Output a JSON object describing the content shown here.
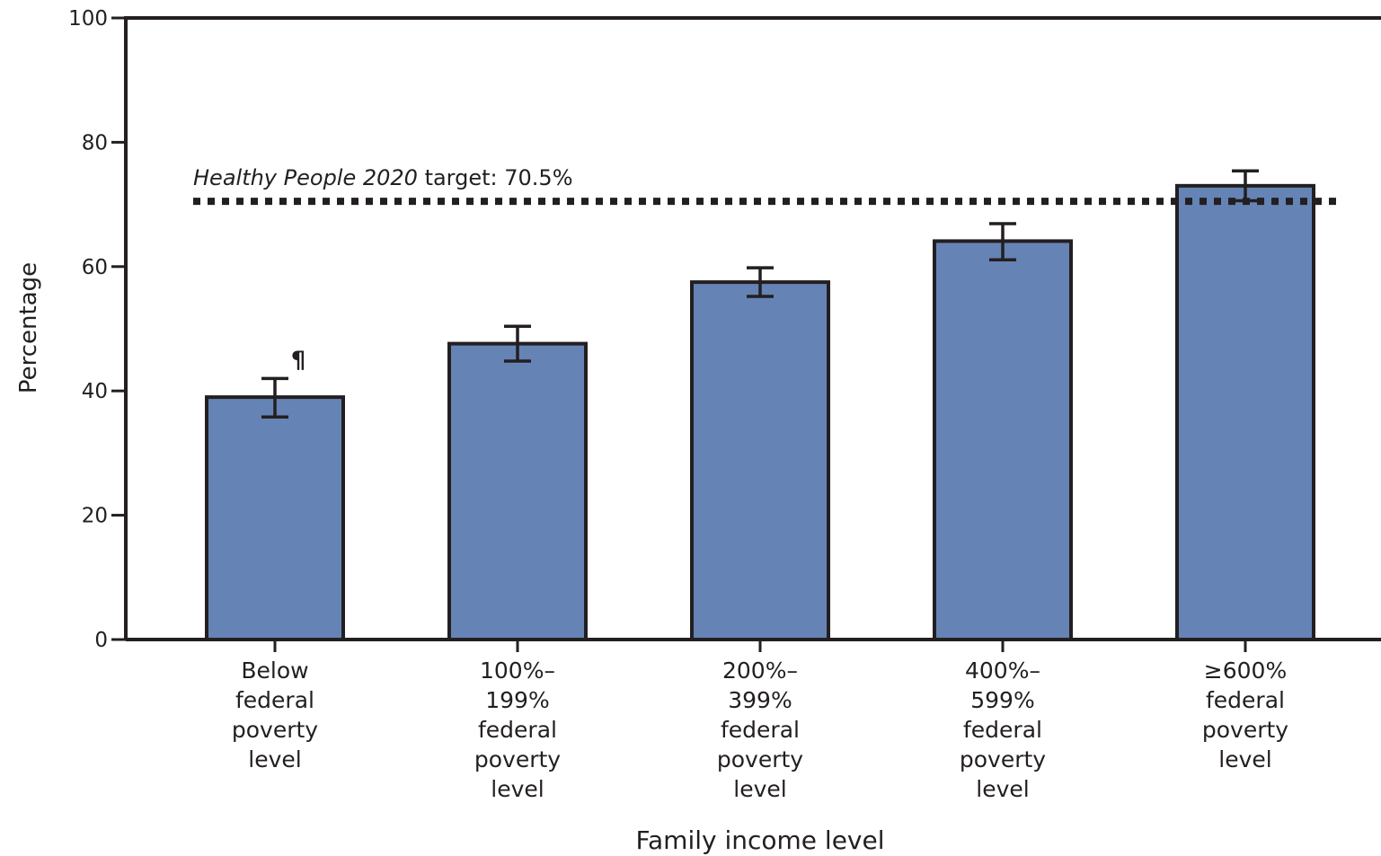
{
  "chart_data": {
    "type": "bar",
    "xlabel": "Family income level",
    "ylabel": "Percentage",
    "ylim": [
      0,
      100
    ],
    "yticks": [
      0,
      20,
      40,
      60,
      80,
      100
    ],
    "grid": false,
    "categories": [
      [
        "Below",
        "federal",
        "poverty",
        "level"
      ],
      [
        "100%–",
        "199%",
        "federal",
        "poverty",
        "level"
      ],
      [
        "200%–",
        "399%",
        "federal",
        "poverty",
        "level"
      ],
      [
        "400%–",
        "599%",
        "federal",
        "poverty",
        "level"
      ],
      [
        "≥600%",
        "federal",
        "poverty",
        "level"
      ]
    ],
    "values": [
      39.0,
      47.6,
      57.5,
      64.1,
      73.0
    ],
    "error_low": [
      35.8,
      44.8,
      55.2,
      61.1,
      70.6
    ],
    "error_high": [
      42.0,
      50.4,
      59.8,
      66.9,
      75.4
    ],
    "bar_markers": [
      "¶",
      "",
      "",
      "",
      ""
    ],
    "reference_line": {
      "value": 70.5,
      "label_italic": "Healthy People 2020",
      "label_rest": " target: 70.5%",
      "style": "dotted"
    },
    "colors": {
      "bar_fill": "#6583b5",
      "bar_stroke": "#231f20",
      "axis": "#231f20"
    }
  }
}
